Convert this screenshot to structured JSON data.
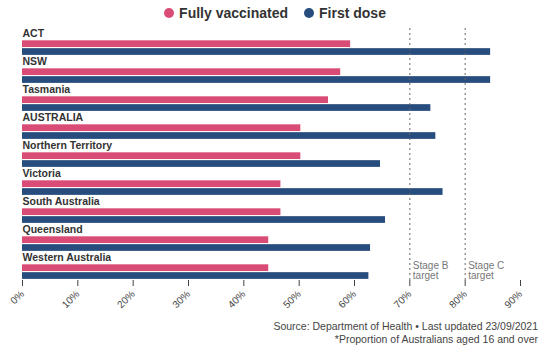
{
  "chart_data": {
    "type": "bar",
    "orientation": "horizontal",
    "legend": "top",
    "grid": false,
    "categories": [
      "ACT",
      "NSW",
      "Tasmania",
      "AUSTRALIA",
      "Northern Territory",
      "Victoria",
      "South Australia",
      "Queensland",
      "Western Australia"
    ],
    "series": [
      {
        "name": "Fully vaccinated",
        "color": "#d94c76",
        "values": [
          59.3,
          57.5,
          55.3,
          50.3,
          50.3,
          46.7,
          46.7,
          44.5,
          44.5
        ]
      },
      {
        "name": "First dose",
        "color": "#264d7e",
        "values": [
          84.6,
          84.6,
          73.8,
          74.7,
          64.7,
          76.0,
          65.6,
          62.9,
          62.6
        ]
      }
    ],
    "xlim": [
      0,
      90
    ],
    "xticks": [
      {
        "value": 0,
        "label": "0%"
      },
      {
        "value": 10,
        "label": "10%"
      },
      {
        "value": 20,
        "label": "20%"
      },
      {
        "value": 30,
        "label": "30%"
      },
      {
        "value": 40,
        "label": "40%"
      },
      {
        "value": 50,
        "label": "50%"
      },
      {
        "value": 60,
        "label": "60%"
      },
      {
        "value": 70,
        "label": "70%"
      },
      {
        "value": 80,
        "label": "80%"
      },
      {
        "value": 90,
        "label": "90%"
      }
    ],
    "annotations": [
      {
        "x": 70,
        "text": "Stage B target"
      },
      {
        "x": 80,
        "text": "Stage C target"
      }
    ],
    "source": "Source: Department of Health • Last updated 23/09/2021",
    "note": "*Proportion of Australians aged 16 and over"
  }
}
